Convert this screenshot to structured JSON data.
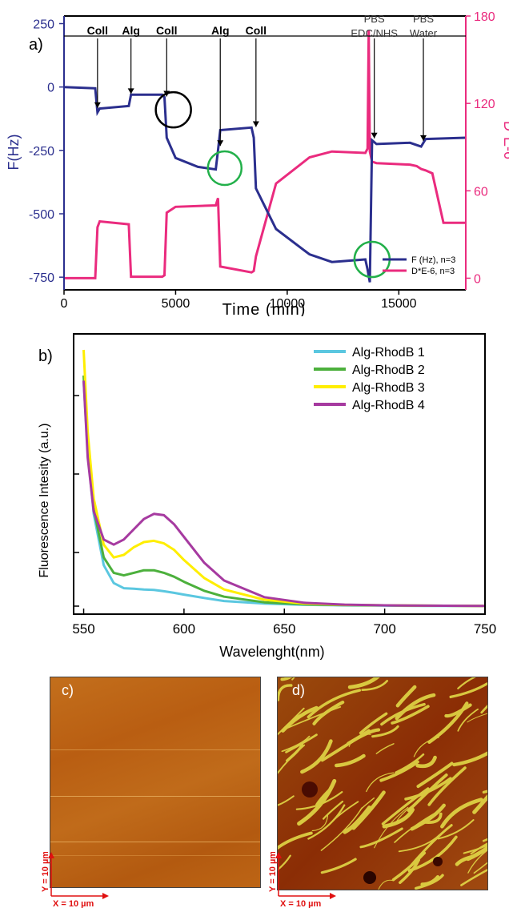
{
  "panel_a": {
    "label": "a)",
    "xlabel": "Time (min)",
    "ylabel_left": "F(Hz)",
    "ylabel_right": "D*E-6",
    "xticks": [
      "0",
      "5000",
      "10000",
      "15000"
    ],
    "yticks_left": [
      "250",
      "0",
      "-250",
      "-500",
      "-750"
    ],
    "yticks_right": [
      "180",
      "120",
      "60",
      "0"
    ],
    "legend": [
      "F (Hz), n=3",
      "D*E-6, n=3"
    ],
    "annotations": [
      {
        "text": "Coll",
        "x": 1500,
        "bold": true
      },
      {
        "text": "Alg",
        "x": 3000,
        "bold": true
      },
      {
        "text": "Coll",
        "x": 4600,
        "bold": true
      },
      {
        "text": "Alg",
        "x": 7000,
        "bold": true
      },
      {
        "text": "Coll",
        "x": 8600,
        "bold": true
      },
      {
        "text": "PBS",
        "x": 13900,
        "bold": false
      },
      {
        "text": "EDC/NHS",
        "x": 13900,
        "bold": false
      },
      {
        "text": "PBS",
        "x": 16100,
        "bold": false
      },
      {
        "text": "Water",
        "x": 16100,
        "bold": false
      }
    ],
    "colors": {
      "freq": "#2b2f8e",
      "diss": "#ea2b7e",
      "left_axis": "#2b2f8e",
      "right_axis": "#ea2b7e",
      "black_circle": "#000000",
      "green_circle": "#22b04a"
    }
  },
  "panel_b": {
    "label": "b)",
    "xlabel": "Wavelenght(nm)",
    "ylabel": "Fluorescence Intesity (a.u.)",
    "xticks": [
      "550",
      "600",
      "650",
      "700",
      "750"
    ],
    "legend": [
      "Alg-RhodB 1",
      "Alg-RhodB 2",
      "Alg-RhodB 3",
      "Alg-RhodB 4"
    ]
  },
  "panel_c": {
    "label": "c)",
    "y_scale": "Y = 10 µm",
    "x_scale": "X = 10 µm"
  },
  "panel_d": {
    "label": "d)",
    "y_scale": "Y = 10 µm",
    "x_scale": "X = 10 µm"
  },
  "chart_data": [
    {
      "type": "line",
      "title": "",
      "xlabel": "Time (min)",
      "xlim": [
        0,
        18000
      ],
      "series": [
        {
          "name": "F (Hz), n=3",
          "axis": "left",
          "ylabel": "F(Hz)",
          "ylim": [
            -800,
            280
          ],
          "x": [
            0,
            1400,
            1500,
            1600,
            2900,
            3000,
            4400,
            4500,
            4600,
            5000,
            6000,
            6800,
            6900,
            7000,
            8400,
            8500,
            8600,
            9500,
            11000,
            12000,
            13500,
            13600,
            13700,
            13800,
            14000,
            15500,
            16000,
            16200,
            18000
          ],
          "y": [
            0,
            -5,
            -100,
            -85,
            -75,
            -30,
            -30,
            -40,
            -200,
            -280,
            -315,
            -325,
            -250,
            -170,
            -160,
            -200,
            -400,
            -560,
            -660,
            -690,
            -680,
            -720,
            -770,
            -210,
            -225,
            -220,
            -235,
            -205,
            -200
          ]
        },
        {
          "name": "D*E-6, n=3",
          "axis": "right",
          "ylabel": "D*E-6",
          "ylim": [
            -8,
            180
          ],
          "x": [
            0,
            1400,
            1500,
            1600,
            2900,
            3000,
            4400,
            4500,
            4600,
            5000,
            6800,
            6900,
            7000,
            8400,
            8500,
            8600,
            9500,
            11000,
            12000,
            13500,
            13600,
            13650,
            13700,
            13800,
            14000,
            15500,
            15800,
            16000,
            16200,
            16500,
            17000,
            18000
          ],
          "y": [
            0,
            0,
            35,
            39,
            37,
            1,
            1,
            2,
            45,
            49,
            50,
            55,
            8,
            4,
            5,
            15,
            65,
            83,
            87,
            86,
            89,
            170,
            87,
            80,
            79,
            78,
            77,
            75,
            74,
            72,
            38,
            38
          ]
        }
      ]
    },
    {
      "type": "line",
      "title": "",
      "xlabel": "Wavelenght(nm)",
      "ylabel": "Fluorescence Intesity (a.u.)",
      "xlim": [
        545,
        750
      ],
      "ylim": [
        0,
        1
      ],
      "legend_position": "top-right",
      "x": [
        550,
        552,
        555,
        560,
        565,
        570,
        575,
        580,
        585,
        590,
        595,
        600,
        610,
        620,
        640,
        660,
        680,
        700,
        720,
        750
      ],
      "series": [
        {
          "name": "Alg-RhodB 1",
          "color": "#5bc7e0",
          "y": [
            0.88,
            0.6,
            0.36,
            0.16,
            0.09,
            0.07,
            0.068,
            0.065,
            0.063,
            0.058,
            0.052,
            0.045,
            0.032,
            0.02,
            0.01,
            0.005,
            0.003,
            0.002,
            0.001,
            0.001
          ]
        },
        {
          "name": "Alg-RhodB 2",
          "color": "#4cb03c",
          "y": [
            0.9,
            0.62,
            0.38,
            0.19,
            0.13,
            0.12,
            0.13,
            0.14,
            0.14,
            0.13,
            0.115,
            0.095,
            0.06,
            0.037,
            0.015,
            0.007,
            0.004,
            0.003,
            0.002,
            0.001
          ]
        },
        {
          "name": "Alg-RhodB 3",
          "color": "#ffee00",
          "y": [
            1.0,
            0.68,
            0.42,
            0.24,
            0.19,
            0.2,
            0.23,
            0.25,
            0.255,
            0.245,
            0.22,
            0.18,
            0.11,
            0.065,
            0.025,
            0.01,
            0.005,
            0.003,
            0.002,
            0.001
          ]
        },
        {
          "name": "Alg-RhodB 4",
          "color": "#a63aa0",
          "y": [
            0.88,
            0.58,
            0.37,
            0.26,
            0.24,
            0.26,
            0.3,
            0.34,
            0.36,
            0.355,
            0.32,
            0.27,
            0.17,
            0.1,
            0.035,
            0.013,
            0.006,
            0.003,
            0.002,
            0.001
          ]
        }
      ]
    }
  ]
}
